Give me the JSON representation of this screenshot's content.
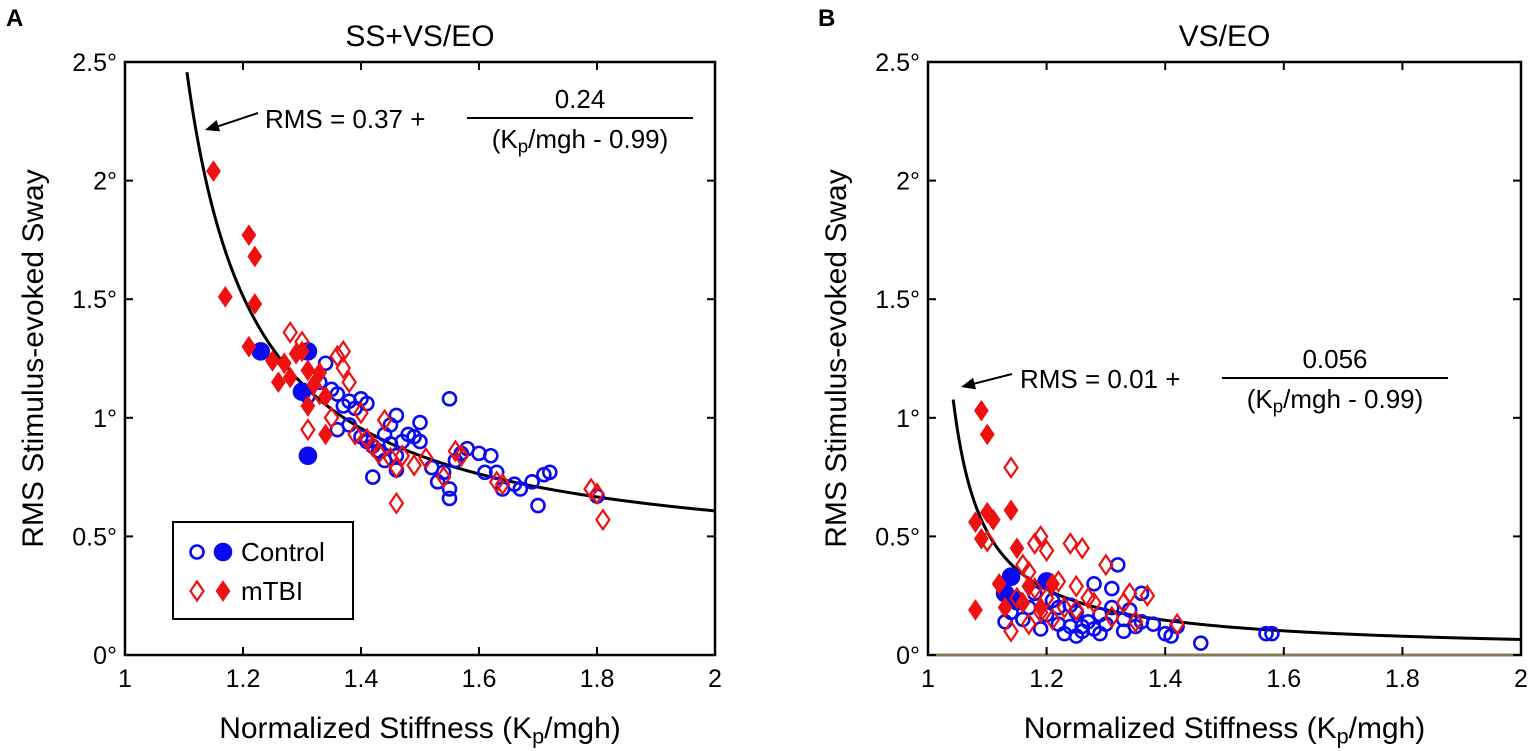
{
  "chart_data": [
    {
      "type": "scatter",
      "panel_letter": "A",
      "title": "SS+VS/EO",
      "xlabel": "Normalized Stiffness (Kp/mgh)",
      "ylabel": "RMS Stimulus-evoked Sway",
      "xlim": [
        1,
        2
      ],
      "ylim": [
        0,
        2.5
      ],
      "xticks": [
        "1",
        "1.2",
        "1.4",
        "1.6",
        "1.8",
        "2"
      ],
      "yticks": [
        "0°",
        "0.5°",
        "1°",
        "1.5°",
        "2°",
        "2.5°"
      ],
      "legend": {
        "position": "bottom-left",
        "entries": [
          "Control",
          "mTBI"
        ]
      },
      "fit": {
        "a": 0.37,
        "b": 0.24,
        "c": 0.99,
        "label_prefix": "RMS = 0.37 +",
        "label_numerator": "0.24",
        "label_denominator": "(Kp/mgh - 0.99)"
      },
      "series": [
        {
          "name": "Control (open)",
          "marker": "circle-open",
          "color": "#0a0af0",
          "points": [
            [
              1.31,
              1.09
            ],
            [
              1.33,
              1.15
            ],
            [
              1.34,
              1.23
            ],
            [
              1.35,
              1.12
            ],
            [
              1.36,
              1.1
            ],
            [
              1.37,
              1.05
            ],
            [
              1.38,
              1.07
            ],
            [
              1.39,
              1.04
            ],
            [
              1.4,
              1.08
            ],
            [
              1.36,
              0.95
            ],
            [
              1.38,
              0.97
            ],
            [
              1.4,
              0.92
            ],
            [
              1.41,
              0.9
            ],
            [
              1.41,
              1.06
            ],
            [
              1.42,
              0.88
            ],
            [
              1.43,
              0.86
            ],
            [
              1.44,
              0.93
            ],
            [
              1.45,
              0.97
            ],
            [
              1.45,
              0.89
            ],
            [
              1.46,
              1.01
            ],
            [
              1.46,
              0.84
            ],
            [
              1.47,
              0.9
            ],
            [
              1.48,
              0.93
            ],
            [
              1.49,
              0.92
            ],
            [
              1.5,
              0.98
            ],
            [
              1.5,
              0.9
            ],
            [
              1.42,
              0.75
            ],
            [
              1.44,
              0.82
            ],
            [
              1.46,
              0.78
            ],
            [
              1.52,
              0.79
            ],
            [
              1.53,
              0.73
            ],
            [
              1.54,
              0.77
            ],
            [
              1.55,
              0.7
            ],
            [
              1.55,
              0.66
            ],
            [
              1.55,
              1.08
            ],
            [
              1.56,
              0.82
            ],
            [
              1.57,
              0.85
            ],
            [
              1.58,
              0.87
            ],
            [
              1.6,
              0.85
            ],
            [
              1.61,
              0.77
            ],
            [
              1.62,
              0.84
            ],
            [
              1.63,
              0.77
            ],
            [
              1.64,
              0.7
            ],
            [
              1.66,
              0.72
            ],
            [
              1.67,
              0.7
            ],
            [
              1.69,
              0.73
            ],
            [
              1.7,
              0.63
            ],
            [
              1.71,
              0.76
            ],
            [
              1.72,
              0.77
            ],
            [
              1.8,
              0.67
            ]
          ]
        },
        {
          "name": "Control (filled)",
          "marker": "circle-filled",
          "color": "#0a0af0",
          "points": [
            [
              1.23,
              1.28
            ],
            [
              1.3,
              1.11
            ],
            [
              1.31,
              1.28
            ],
            [
              1.31,
              0.84
            ]
          ]
        },
        {
          "name": "mTBI (open)",
          "marker": "diamond-open",
          "color": "#ee1111",
          "points": [
            [
              1.28,
              1.36
            ],
            [
              1.3,
              1.32
            ],
            [
              1.31,
              0.95
            ],
            [
              1.33,
              1.1
            ],
            [
              1.35,
              1.0
            ],
            [
              1.36,
              1.26
            ],
            [
              1.37,
              1.21
            ],
            [
              1.37,
              1.28
            ],
            [
              1.38,
              1.15
            ],
            [
              1.39,
              0.93
            ],
            [
              1.4,
              1.02
            ],
            [
              1.41,
              0.91
            ],
            [
              1.42,
              0.88
            ],
            [
              1.43,
              0.85
            ],
            [
              1.44,
              0.99
            ],
            [
              1.45,
              0.83
            ],
            [
              1.46,
              0.79
            ],
            [
              1.47,
              0.84
            ],
            [
              1.46,
              0.64
            ],
            [
              1.49,
              0.8
            ],
            [
              1.51,
              0.83
            ],
            [
              1.54,
              0.75
            ],
            [
              1.56,
              0.86
            ],
            [
              1.57,
              0.84
            ],
            [
              1.63,
              0.73
            ],
            [
              1.64,
              0.72
            ],
            [
              1.79,
              0.7
            ],
            [
              1.8,
              0.68
            ],
            [
              1.81,
              0.57
            ]
          ]
        },
        {
          "name": "mTBI (filled)",
          "marker": "diamond-filled",
          "color": "#ee1111",
          "points": [
            [
              1.15,
              2.04
            ],
            [
              1.17,
              1.51
            ],
            [
              1.21,
              1.77
            ],
            [
              1.22,
              1.48
            ],
            [
              1.22,
              1.68
            ],
            [
              1.21,
              1.3
            ],
            [
              1.25,
              1.24
            ],
            [
              1.26,
              1.15
            ],
            [
              1.27,
              1.23
            ],
            [
              1.28,
              1.17
            ],
            [
              1.29,
              1.27
            ],
            [
              1.3,
              1.28
            ],
            [
              1.31,
              1.2
            ],
            [
              1.31,
              1.05
            ],
            [
              1.32,
              1.14
            ],
            [
              1.33,
              1.19
            ],
            [
              1.34,
              1.09
            ],
            [
              1.34,
              0.93
            ]
          ]
        }
      ]
    },
    {
      "type": "scatter",
      "panel_letter": "B",
      "title": "VS/EO",
      "xlabel": "Normalized Stiffness (Kp/mgh)",
      "ylabel": "RMS Stimulus-evoked Sway",
      "xlim": [
        1,
        2
      ],
      "ylim": [
        0,
        2.5
      ],
      "xticks": [
        "1",
        "1.2",
        "1.4",
        "1.6",
        "1.8",
        "2"
      ],
      "yticks": [
        "0°",
        "0.5°",
        "1°",
        "1.5°",
        "2°",
        "2.5°"
      ],
      "fit": {
        "a": 0.01,
        "b": 0.056,
        "c": 0.99,
        "label_prefix": "RMS = 0.01 +",
        "label_numerator": "0.056",
        "label_denominator": "(Kp/mgh - 0.99)"
      },
      "series": [
        {
          "name": "Control (open)",
          "marker": "circle-open",
          "color": "#0a0af0",
          "points": [
            [
              1.13,
              0.14
            ],
            [
              1.14,
              0.18
            ],
            [
              1.15,
              0.22
            ],
            [
              1.16,
              0.15
            ],
            [
              1.17,
              0.2
            ],
            [
              1.18,
              0.26
            ],
            [
              1.19,
              0.11
            ],
            [
              1.2,
              0.17
            ],
            [
              1.21,
              0.23
            ],
            [
              1.22,
              0.2
            ],
            [
              1.22,
              0.13
            ],
            [
              1.23,
              0.09
            ],
            [
              1.24,
              0.12
            ],
            [
              1.25,
              0.18
            ],
            [
              1.26,
              0.1
            ],
            [
              1.27,
              0.14
            ],
            [
              1.28,
              0.11
            ],
            [
              1.28,
              0.3
            ],
            [
              1.29,
              0.17
            ],
            [
              1.29,
              0.09
            ],
            [
              1.3,
              0.13
            ],
            [
              1.31,
              0.28
            ],
            [
              1.31,
              0.2
            ],
            [
              1.32,
              0.38
            ],
            [
              1.33,
              0.15
            ],
            [
              1.33,
              0.1
            ],
            [
              1.34,
              0.19
            ],
            [
              1.35,
              0.12
            ],
            [
              1.36,
              0.26
            ],
            [
              1.36,
              0.14
            ],
            [
              1.38,
              0.13
            ],
            [
              1.4,
              0.09
            ],
            [
              1.41,
              0.08
            ],
            [
              1.42,
              0.12
            ],
            [
              1.46,
              0.05
            ],
            [
              1.57,
              0.09
            ],
            [
              1.58,
              0.09
            ],
            [
              1.26,
              0.12
            ],
            [
              1.25,
              0.08
            ],
            [
              1.24,
              0.21
            ]
          ]
        },
        {
          "name": "Control (filled)",
          "marker": "circle-filled",
          "color": "#0a0af0",
          "points": [
            [
              1.13,
              0.26
            ],
            [
              1.14,
              0.33
            ],
            [
              1.15,
              0.23
            ],
            [
              1.2,
              0.31
            ]
          ]
        },
        {
          "name": "mTBI (open)",
          "marker": "diamond-open",
          "color": "#ee1111",
          "points": [
            [
              1.1,
              0.48
            ],
            [
              1.14,
              0.79
            ],
            [
              1.14,
              0.1
            ],
            [
              1.15,
              0.24
            ],
            [
              1.16,
              0.38
            ],
            [
              1.17,
              0.35
            ],
            [
              1.17,
              0.13
            ],
            [
              1.18,
              0.47
            ],
            [
              1.18,
              0.28
            ],
            [
              1.19,
              0.5
            ],
            [
              1.19,
              0.18
            ],
            [
              1.2,
              0.44
            ],
            [
              1.2,
              0.24
            ],
            [
              1.21,
              0.15
            ],
            [
              1.22,
              0.31
            ],
            [
              1.23,
              0.2
            ],
            [
              1.24,
              0.47
            ],
            [
              1.25,
              0.29
            ],
            [
              1.25,
              0.19
            ],
            [
              1.26,
              0.45
            ],
            [
              1.27,
              0.24
            ],
            [
              1.28,
              0.22
            ],
            [
              1.3,
              0.38
            ],
            [
              1.31,
              0.16
            ],
            [
              1.33,
              0.22
            ],
            [
              1.34,
              0.26
            ],
            [
              1.35,
              0.14
            ],
            [
              1.37,
              0.25
            ],
            [
              1.42,
              0.13
            ]
          ]
        },
        {
          "name": "mTBI (filled)",
          "marker": "diamond-filled",
          "color": "#ee1111",
          "points": [
            [
              1.08,
              0.19
            ],
            [
              1.08,
              0.56
            ],
            [
              1.09,
              1.03
            ],
            [
              1.09,
              0.49
            ],
            [
              1.1,
              0.93
            ],
            [
              1.1,
              0.6
            ],
            [
              1.11,
              0.57
            ],
            [
              1.12,
              0.3
            ],
            [
              1.13,
              0.2
            ],
            [
              1.14,
              0.61
            ],
            [
              1.15,
              0.45
            ],
            [
              1.16,
              0.22
            ],
            [
              1.17,
              0.29
            ],
            [
              1.19,
              0.2
            ],
            [
              1.21,
              0.3
            ]
          ]
        }
      ]
    }
  ]
}
